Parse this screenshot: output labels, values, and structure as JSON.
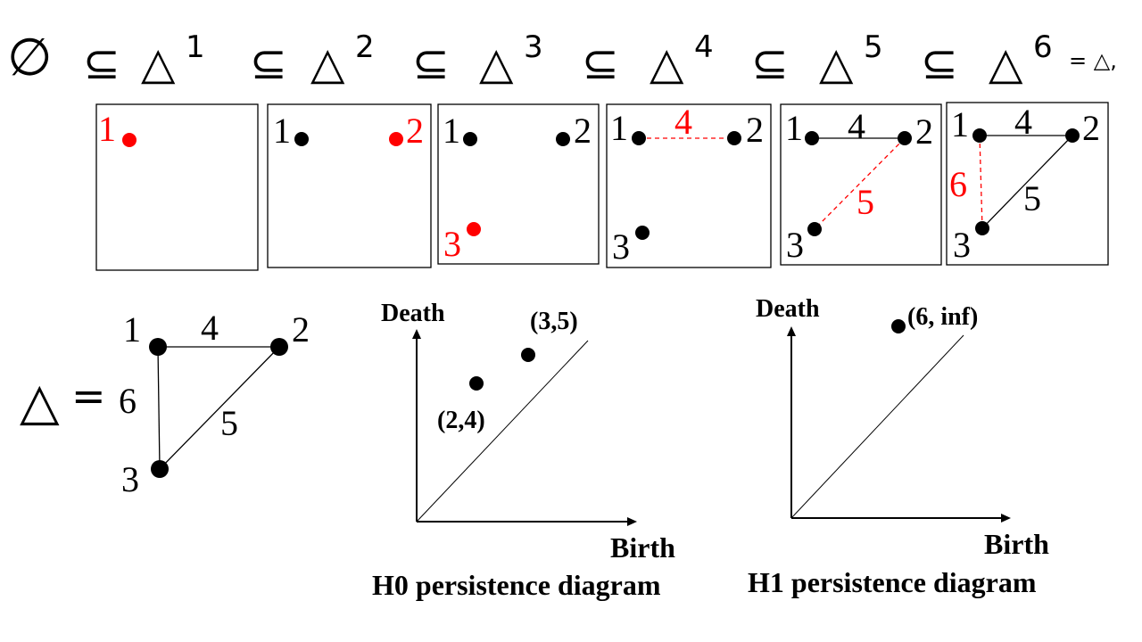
{
  "filtration": {
    "empty": "∅",
    "subset": "⊆",
    "delta": "△",
    "superscripts": [
      "1",
      "2",
      "3",
      "4",
      "5",
      "6"
    ],
    "tail": "= △,"
  },
  "panels": [
    {
      "vertices": [
        {
          "label": "1",
          "color": "#ff0000"
        }
      ],
      "edges": []
    },
    {
      "vertices": [
        {
          "label": "1",
          "color": "#000000"
        },
        {
          "label": "2",
          "color": "#ff0000"
        }
      ],
      "edges": []
    },
    {
      "vertices": [
        {
          "label": "1",
          "color": "#000000"
        },
        {
          "label": "2",
          "color": "#000000"
        },
        {
          "label": "3",
          "color": "#ff0000"
        }
      ],
      "edges": []
    },
    {
      "vertices": [
        {
          "label": "1",
          "color": "#000000"
        },
        {
          "label": "2",
          "color": "#000000"
        },
        {
          "label": "3",
          "color": "#000000"
        }
      ],
      "edges": [
        {
          "label": "4",
          "color": "#ff0000",
          "style": "dashed"
        }
      ]
    },
    {
      "vertices": [
        {
          "label": "1",
          "color": "#000000"
        },
        {
          "label": "2",
          "color": "#000000"
        },
        {
          "label": "3",
          "color": "#000000"
        }
      ],
      "edges": [
        {
          "label": "4",
          "color": "#000000",
          "style": "solid"
        },
        {
          "label": "5",
          "color": "#ff0000",
          "style": "dashed"
        }
      ]
    },
    {
      "vertices": [
        {
          "label": "1",
          "color": "#000000"
        },
        {
          "label": "2",
          "color": "#000000"
        },
        {
          "label": "3",
          "color": "#000000"
        }
      ],
      "edges": [
        {
          "label": "4",
          "color": "#000000",
          "style": "solid"
        },
        {
          "label": "5",
          "color": "#000000",
          "style": "solid"
        },
        {
          "label": "6",
          "color": "#ff0000",
          "style": "dashed"
        }
      ]
    }
  ],
  "complex": {
    "symbol": "△",
    "equals": "=",
    "vertices": [
      "1",
      "2",
      "3"
    ],
    "edges": [
      "4",
      "5",
      "6"
    ]
  },
  "diagrams": [
    {
      "ylabel": "Death",
      "xlabel": "Birth",
      "caption": "H0 persistence diagram",
      "points": [
        {
          "label": "(2,4)"
        },
        {
          "label": "(3,5)"
        }
      ]
    },
    {
      "ylabel": "Death",
      "xlabel": "Birth",
      "caption": "H1 persistence diagram",
      "points": [
        {
          "label": "(6, inf)"
        }
      ]
    }
  ],
  "colors": {
    "new_element": "#ff0000",
    "existing": "#000000"
  }
}
